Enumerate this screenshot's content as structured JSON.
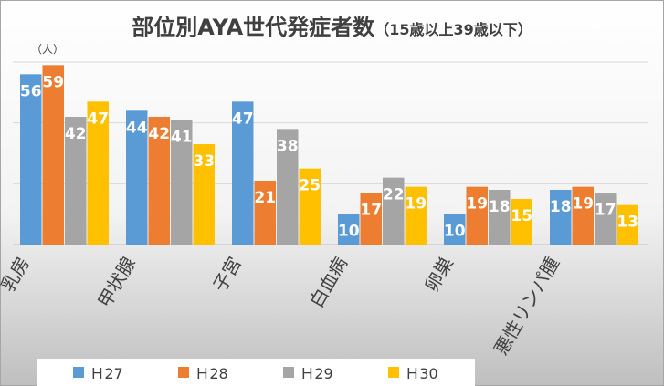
{
  "title": {
    "main": "部位別AYA世代発症者数",
    "sub": "（15歳以上39歳以下）"
  },
  "unit_label": "（人）",
  "colors": {
    "H27": "#5b9bd5",
    "H28": "#ed7d31",
    "H29": "#a5a5a5",
    "H30": "#ffc000"
  },
  "chart_data": {
    "type": "bar",
    "categories": [
      "乳房",
      "甲状腺",
      "子宮",
      "白血病",
      "卵巣",
      "悪性リンパ腫"
    ],
    "series": [
      {
        "name": "Ｈ27",
        "values": [
          56,
          44,
          47,
          10,
          10,
          18
        ]
      },
      {
        "name": "Ｈ28",
        "values": [
          59,
          42,
          21,
          17,
          19,
          19
        ]
      },
      {
        "name": "Ｈ29",
        "values": [
          42,
          41,
          38,
          22,
          18,
          17
        ]
      },
      {
        "name": "Ｈ30",
        "values": [
          47,
          33,
          25,
          19,
          15,
          13
        ]
      }
    ],
    "ylim": [
      0,
      60
    ],
    "grid": true,
    "legend_position": "bottom",
    "data_labels": true
  }
}
